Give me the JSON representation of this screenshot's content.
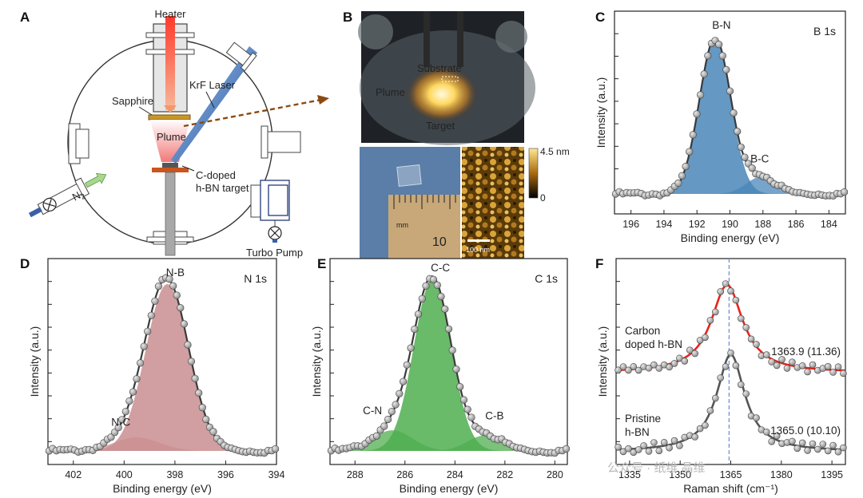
{
  "panel_labels": {
    "A": "A",
    "B": "B",
    "C": "C",
    "D": "D",
    "E": "E",
    "F": "F"
  },
  "schematic": {
    "heater": "Heater",
    "krf_laser": "KrF Laser",
    "sapphire": "Sapphire",
    "plume": "Plume",
    "target_line1": "C-doped",
    "target_line2": "h-BN target",
    "n2": "N",
    "n2_sub": "2",
    "turbo_pump": "Turbo Pump"
  },
  "photo": {
    "substrate": "Substrate",
    "plume": "Plume",
    "target": "Target",
    "colorbar_max": "4.5 nm",
    "colorbar_min": "0",
    "scale_bar": "100 nm",
    "ruler_unit": "mm",
    "ruler_number": "10"
  },
  "colors": {
    "blue": "#4a86b8",
    "pink": "#c98e90",
    "green": "#4fae4f",
    "red": "#e8231c",
    "gray_line": "#555555"
  },
  "chart_data": [
    {
      "id": "C",
      "type": "line",
      "title": "B 1s",
      "xlabel": "Binding energy (eV)",
      "ylabel": "Intensity (a.u.)",
      "xlim": [
        197,
        183
      ],
      "xticks": [
        196,
        194,
        192,
        190,
        188,
        186,
        184
      ],
      "peaks": [
        {
          "name": "B-N",
          "center": 190.9,
          "height": 1.0,
          "width": 0.95
        },
        {
          "name": "B-C",
          "center": 188.1,
          "height": 0.11,
          "width": 0.9
        }
      ],
      "baseline": 0.0
    },
    {
      "id": "D",
      "type": "line",
      "title": "N 1s",
      "xlabel": "Binding energy (eV)",
      "ylabel": "Intensity (a.u.)",
      "xlim": [
        403,
        394
      ],
      "xticks": [
        402,
        400,
        398,
        396,
        394
      ],
      "peaks": [
        {
          "name": "N-B",
          "center": 398.3,
          "height": 1.0,
          "width": 0.85
        },
        {
          "name": "N-C",
          "center": 399.5,
          "height": 0.08,
          "width": 0.9
        }
      ],
      "baseline": 0.0
    },
    {
      "id": "E",
      "type": "line",
      "title": "C 1s",
      "xlabel": "Binding energy (eV)",
      "ylabel": "Intensity (a.u.)",
      "xlim": [
        289,
        279.5
      ],
      "xticks": [
        288,
        286,
        284,
        282,
        280
      ],
      "peaks": [
        {
          "name": "C-C",
          "center": 284.9,
          "height": 1.0,
          "width": 0.75
        },
        {
          "name": "C-N",
          "center": 286.5,
          "height": 0.12,
          "width": 0.8
        },
        {
          "name": "C-B",
          "center": 282.8,
          "height": 0.09,
          "width": 0.7
        }
      ],
      "baseline": 0.0
    },
    {
      "id": "F",
      "type": "line",
      "xlabel": "Raman shift (cm⁻¹)",
      "ylabel": "Intensity (a.u.)",
      "xlim": [
        1331,
        1399
      ],
      "xticks": [
        1335,
        1350,
        1365,
        1380,
        1395
      ],
      "reference_line": 1364.5,
      "series": [
        {
          "name": "Carbon doped h-BN",
          "center": 1363.9,
          "fwhm": 11.36,
          "annotation": "1363.9 (11.36)",
          "color": "#e8231c"
        },
        {
          "name": "Pristine h-BN",
          "center": 1365.0,
          "fwhm": 10.1,
          "annotation": "1365.0 (10.10)",
          "color": "#555555"
        }
      ],
      "series_labels": {
        "s1_line1": "Carbon",
        "s1_line2": "doped h-BN",
        "s2_line1": "Pristine",
        "s2_line2": "h-BN"
      }
    }
  ],
  "watermark": "公众号 · 纸维 晶维"
}
